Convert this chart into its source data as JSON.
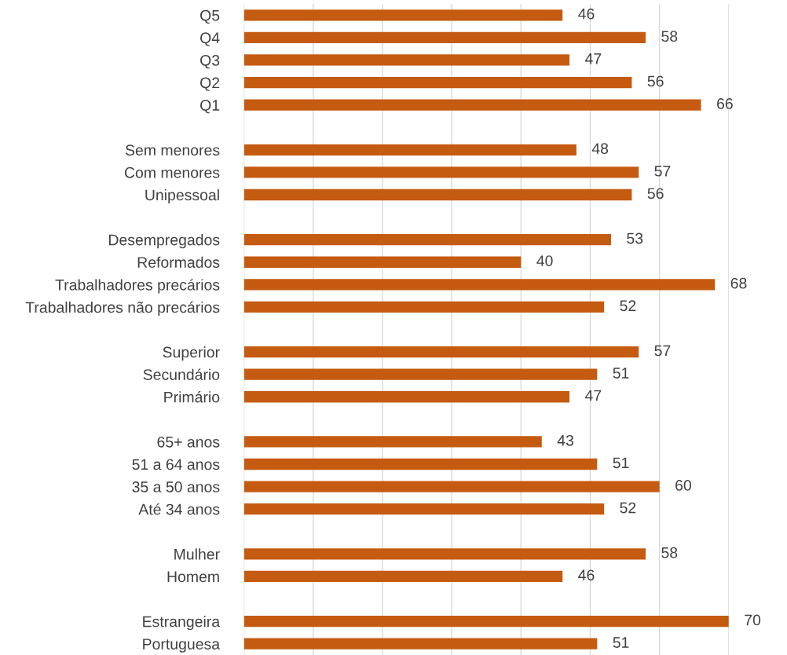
{
  "chart_data": {
    "type": "bar",
    "orientation": "horizontal",
    "categories": [
      "Q5",
      "Q4",
      "Q3",
      "Q2",
      "Q1",
      null,
      "Sem menores",
      "Com menores",
      "Unipessoal",
      null,
      "Desempregados",
      "Reformados",
      "Trabalhadores precários",
      "Trabalhadores não precários",
      null,
      "Superior",
      "Secundário",
      "Primário",
      null,
      "65+ anos",
      "51 a 64 anos",
      "35 a 50 anos",
      "Até 34 anos",
      null,
      "Mulher",
      "Homem",
      null,
      "Estrangeira",
      "Portuguesa"
    ],
    "values": [
      46,
      58,
      47,
      56,
      66,
      null,
      48,
      57,
      56,
      null,
      53,
      40,
      68,
      52,
      null,
      57,
      51,
      47,
      null,
      43,
      51,
      60,
      52,
      null,
      58,
      46,
      null,
      70,
      51
    ],
    "color": "#c55a11",
    "xlim": [
      0,
      70
    ],
    "xticks": [
      {
        "value": 0,
        "label": null
      },
      {
        "value": 10,
        "label": null
      },
      {
        "value": 20,
        "label": null
      },
      {
        "value": 30,
        "label": null
      },
      {
        "value": 40,
        "label": null
      },
      {
        "value": 50,
        "label": null
      },
      {
        "value": 60,
        "label": null
      },
      {
        "value": 70,
        "label": null
      }
    ],
    "grid": "x",
    "tick_labels": "y",
    "data_labels": true,
    "legend": false
  }
}
